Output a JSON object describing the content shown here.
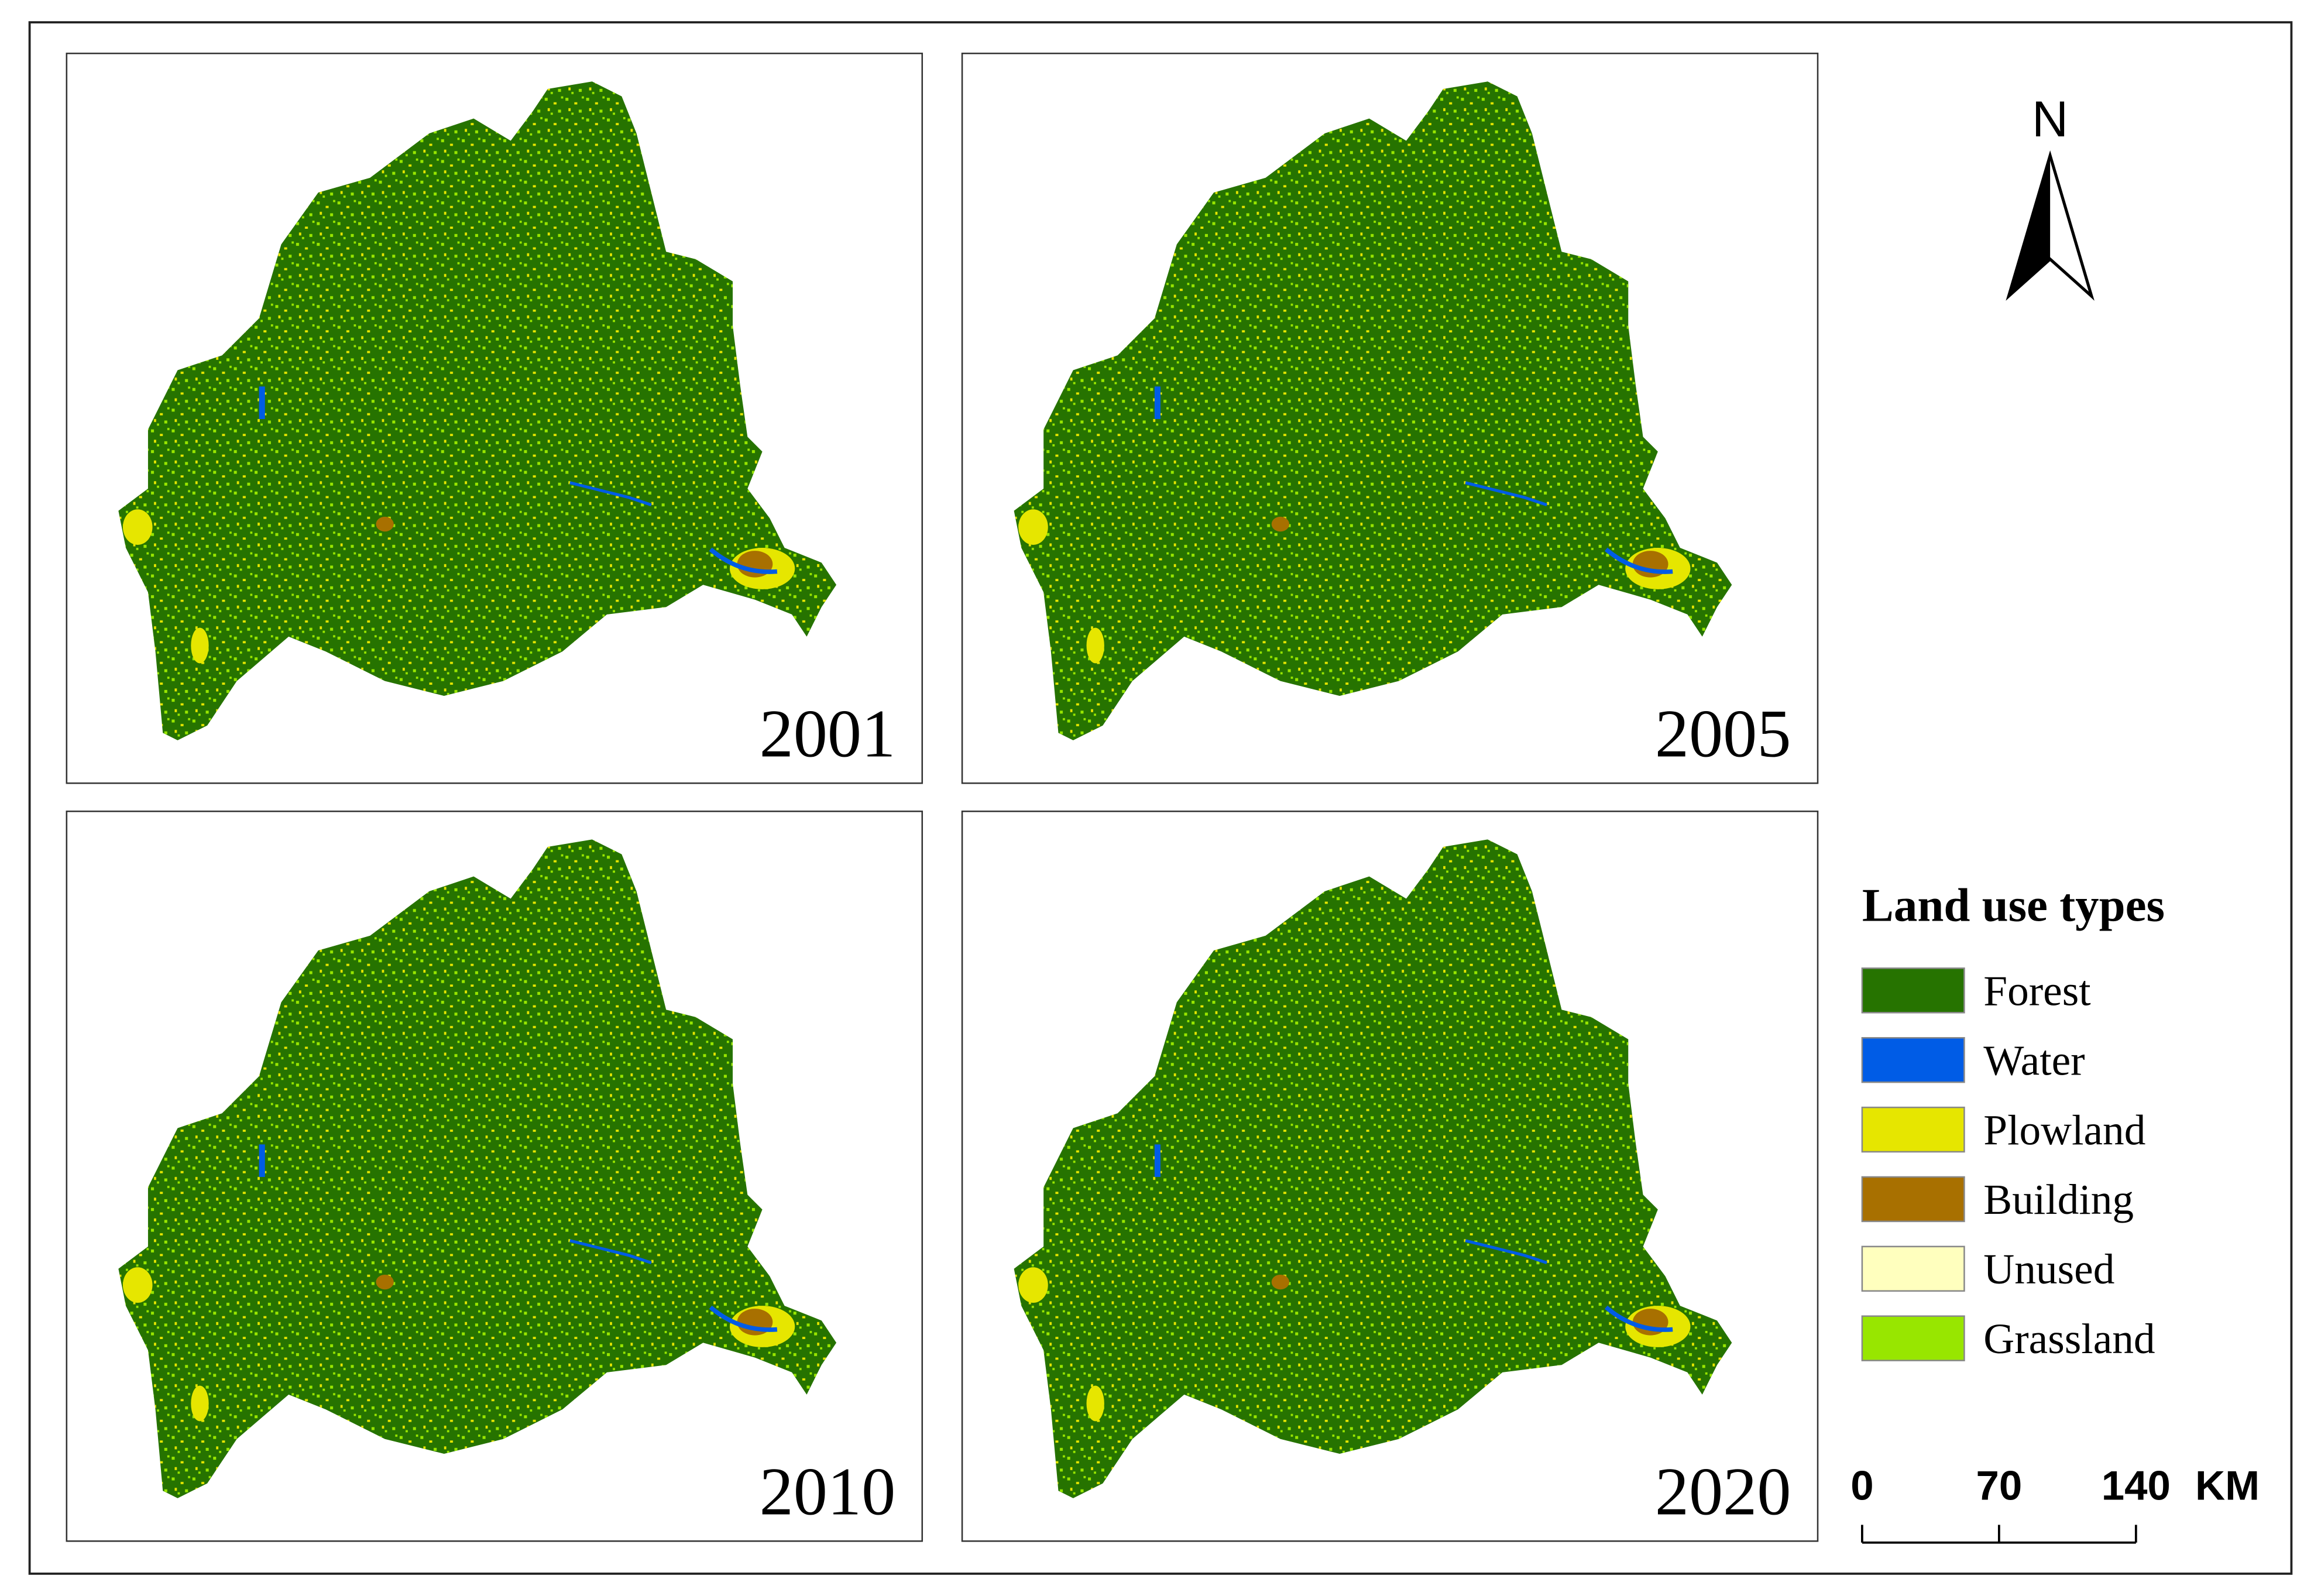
{
  "panels": [
    {
      "year": "2001"
    },
    {
      "year": "2005"
    },
    {
      "year": "2010"
    },
    {
      "year": "2020"
    }
  ],
  "north_arrow": {
    "label": "N"
  },
  "legend": {
    "title": "Land use types",
    "items": [
      {
        "name": "Forest",
        "color": "#267300"
      },
      {
        "name": "Water",
        "color": "#005ce6"
      },
      {
        "name": "Plowland",
        "color": "#e6e600"
      },
      {
        "name": "Building",
        "color": "#a87000"
      },
      {
        "name": "Unused",
        "color": "#ffffbe"
      },
      {
        "name": "Grassland",
        "color": "#98e600"
      }
    ]
  },
  "scale_bar": {
    "ticks": [
      0,
      70,
      140
    ],
    "unit": "KM"
  }
}
